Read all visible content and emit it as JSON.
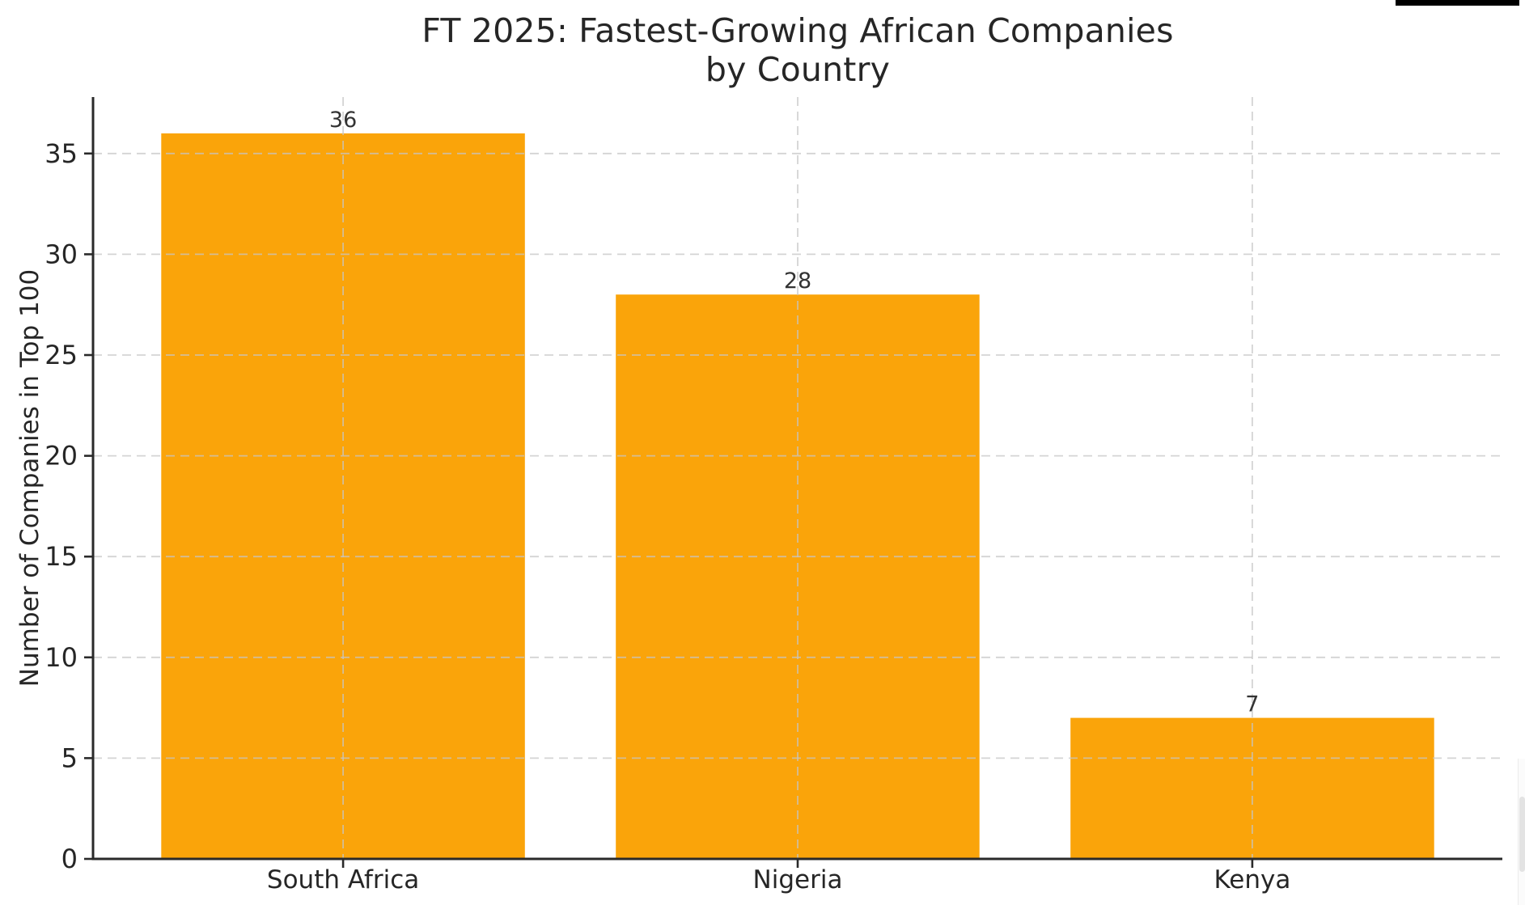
{
  "chart_data": {
    "type": "bar",
    "title": "FT 2025: Fastest-Growing African Companies by Country",
    "title_lines": [
      "FT 2025: Fastest-Growing African Companies",
      "by Country"
    ],
    "categories": [
      "South Africa",
      "Nigeria",
      "Kenya"
    ],
    "values": [
      36,
      28,
      7
    ],
    "bar_value_labels": [
      "36",
      "28",
      "7"
    ],
    "xlabel": "",
    "ylabel": "Number of Companies in Top 100",
    "ylim": [
      0,
      37.8
    ],
    "yticks": [
      0,
      5,
      10,
      15,
      20,
      25,
      30,
      35
    ],
    "grid": true,
    "grid_style": "dashed",
    "legend_position": "none",
    "colors": {
      "bar": "#FAA40A",
      "grid": "#c6c6c6",
      "axis": "#2a2a2a",
      "text": "#262626",
      "value_label": "#333333",
      "background": "#ffffff"
    }
  },
  "decorations": {
    "top_right_bar_color": "#000000",
    "scrollbar_track_color": "#fbfbfb",
    "scrollbar_thumb_color": "#e3e3e3"
  }
}
